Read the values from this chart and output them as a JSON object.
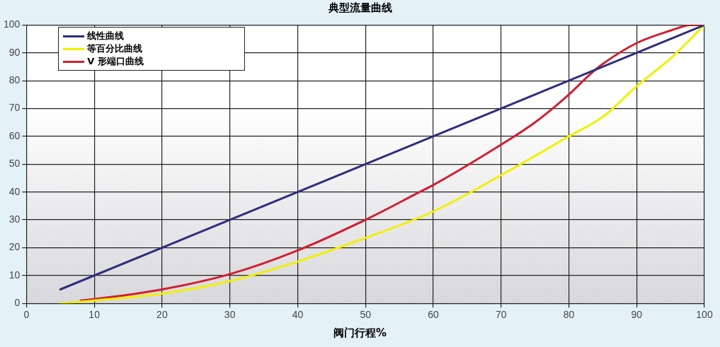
{
  "chart_data": {
    "type": "line",
    "title": "典型流量曲线",
    "xlabel": "阀门行程%",
    "xlim": [
      0,
      100
    ],
    "xticks": [
      0,
      10,
      20,
      30,
      40,
      50,
      60,
      70,
      80,
      90,
      100
    ],
    "ylim": [
      0,
      100
    ],
    "yticks": [
      0,
      10,
      20,
      30,
      40,
      50,
      60,
      70,
      80,
      90,
      100
    ],
    "grid": true,
    "legend": "top left",
    "marker": "none",
    "line_style": "solid",
    "series": [
      {
        "name": "线性曲线",
        "color": "#2e2e7e",
        "x": [
          5,
          100
        ],
        "values": [
          5,
          100
        ]
      },
      {
        "name": "等百分比曲线",
        "color": "#f0f000",
        "x": [
          5,
          10,
          20,
          30,
          40,
          50,
          60,
          70,
          80,
          85,
          90,
          95,
          100
        ],
        "values": [
          0,
          1,
          3.5,
          8,
          15,
          23.5,
          33,
          46,
          60,
          67,
          78,
          88,
          100
        ]
      },
      {
        "name": "V 形端口曲线",
        "color": "#d02030",
        "x": [
          8,
          10,
          20,
          30,
          40,
          50,
          58,
          60,
          70,
          75,
          80,
          83,
          85,
          90,
          95,
          98,
          100
        ],
        "values": [
          1,
          1.5,
          5,
          10.5,
          19,
          30,
          40,
          42.5,
          57,
          65,
          75,
          82,
          86,
          93.5,
          98,
          100,
          100
        ]
      }
    ]
  }
}
